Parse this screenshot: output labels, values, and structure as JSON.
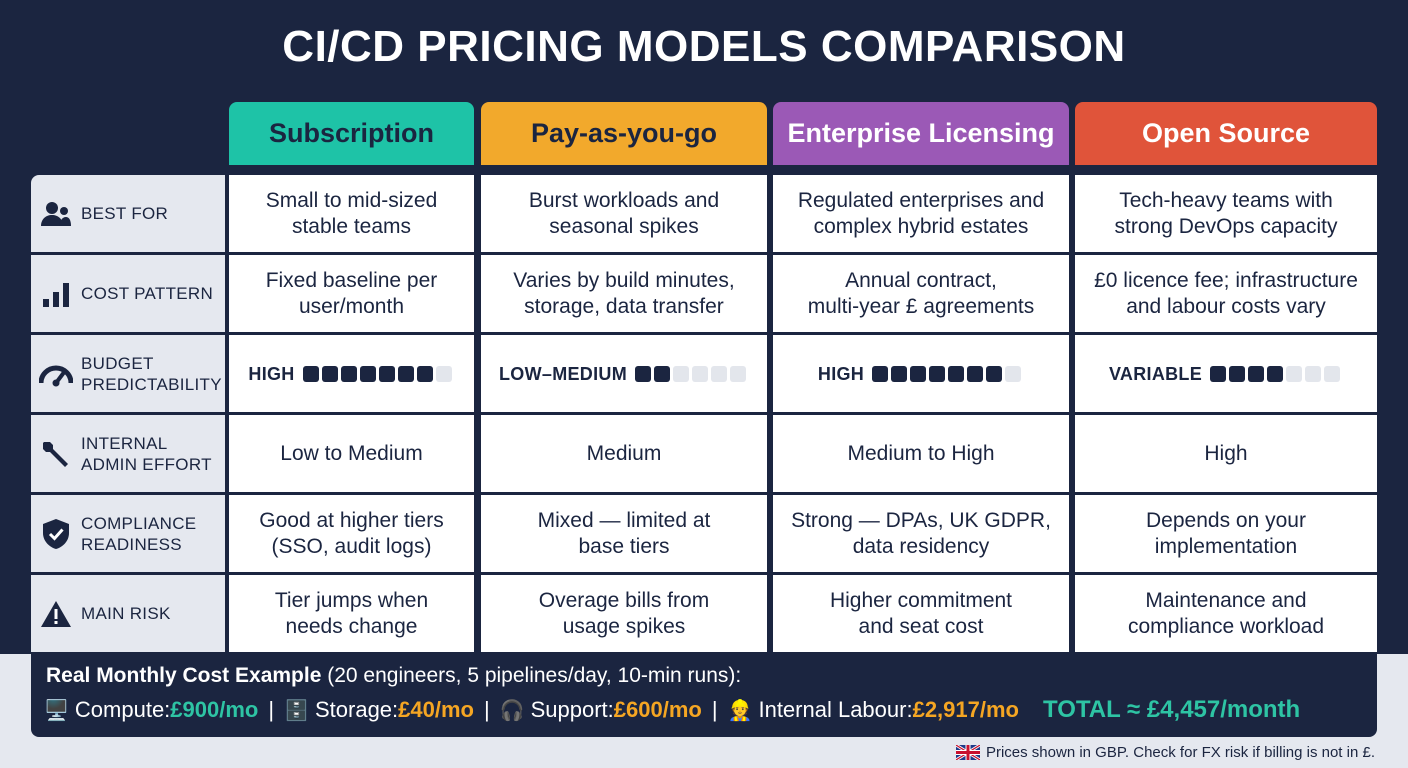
{
  "title": "CI/CD PRICING MODELS COMPARISON",
  "columns": [
    {
      "label": "Subscription",
      "bg": "#1ec3a7",
      "fg": "#1b2540"
    },
    {
      "label": "Pay-as-you-go",
      "bg": "#f2a92c",
      "fg": "#1b2540"
    },
    {
      "label": "Enterprise Licensing",
      "bg": "#9b59b6",
      "fg": "#ffffff"
    },
    {
      "label": "Open Source",
      "bg": "#e0543a",
      "fg": "#ffffff"
    }
  ],
  "rows": [
    {
      "label": "BEST FOR",
      "icon": "users-icon",
      "cells": [
        "Small to mid-sized\nstable teams",
        "Burst workloads and\nseasonal spikes",
        "Regulated enterprises and\ncomplex hybrid estates",
        "Tech-heavy teams with\nstrong DevOps capacity"
      ]
    },
    {
      "label": "COST PATTERN",
      "icon": "bar-chart-icon",
      "cells": [
        "Fixed baseline per\nuser/month",
        "Varies by build minutes,\nstorage, data transfer",
        "Annual contract,\nmulti-year £ agreements",
        "£0 licence fee; infrastructure\nand labour costs vary"
      ]
    },
    {
      "label": "BUDGET\nPREDICTABILITY",
      "icon": "gauge-icon",
      "predictability": [
        {
          "level": "HIGH",
          "filled": 7,
          "total": 8
        },
        {
          "level": "LOW–MEDIUM",
          "filled": 2,
          "total": 6
        },
        {
          "level": "HIGH",
          "filled": 7,
          "total": 8
        },
        {
          "level": "VARIABLE",
          "filled": 4,
          "total": 7
        }
      ]
    },
    {
      "label": "INTERNAL\nADMIN EFFORT",
      "icon": "wrench-icon",
      "cells": [
        "Low to Medium",
        "Medium",
        "Medium to High",
        "High"
      ]
    },
    {
      "label": "COMPLIANCE\nREADINESS",
      "icon": "shield-check-icon",
      "cells": [
        "Good at higher tiers\n(SSO, audit logs)",
        "Mixed — limited at\nbase tiers",
        "Strong — DPAs, UK GDPR,\ndata residency",
        "Depends on your\nimplementation"
      ]
    },
    {
      "label": "MAIN RISK",
      "icon": "warning-icon",
      "cells": [
        "Tier jumps when\nneeds change",
        "Overage bills from\nusage spikes",
        "Higher commitment\nand seat cost",
        "Maintenance and\ncompliance workload"
      ]
    }
  ],
  "footer": {
    "heading": "Real Monthly Cost Example",
    "subheading": "(20 engineers, 5 pipelines/day, 10-min runs):",
    "items": [
      {
        "emoji": "🖥️",
        "label": "Compute:",
        "value": "£900/mo"
      },
      {
        "emoji": "🗄️",
        "label": "Storage:",
        "value": "£40/mo"
      },
      {
        "emoji": "🎧",
        "label": "Support:",
        "value": "£600/mo"
      },
      {
        "emoji": "👷",
        "label": "Internal Labour:",
        "value": "£2,917/mo"
      }
    ],
    "total": "TOTAL ≈ £4,457/month"
  },
  "note": "Prices shown in GBP. Check for FX risk if billing is not in £."
}
